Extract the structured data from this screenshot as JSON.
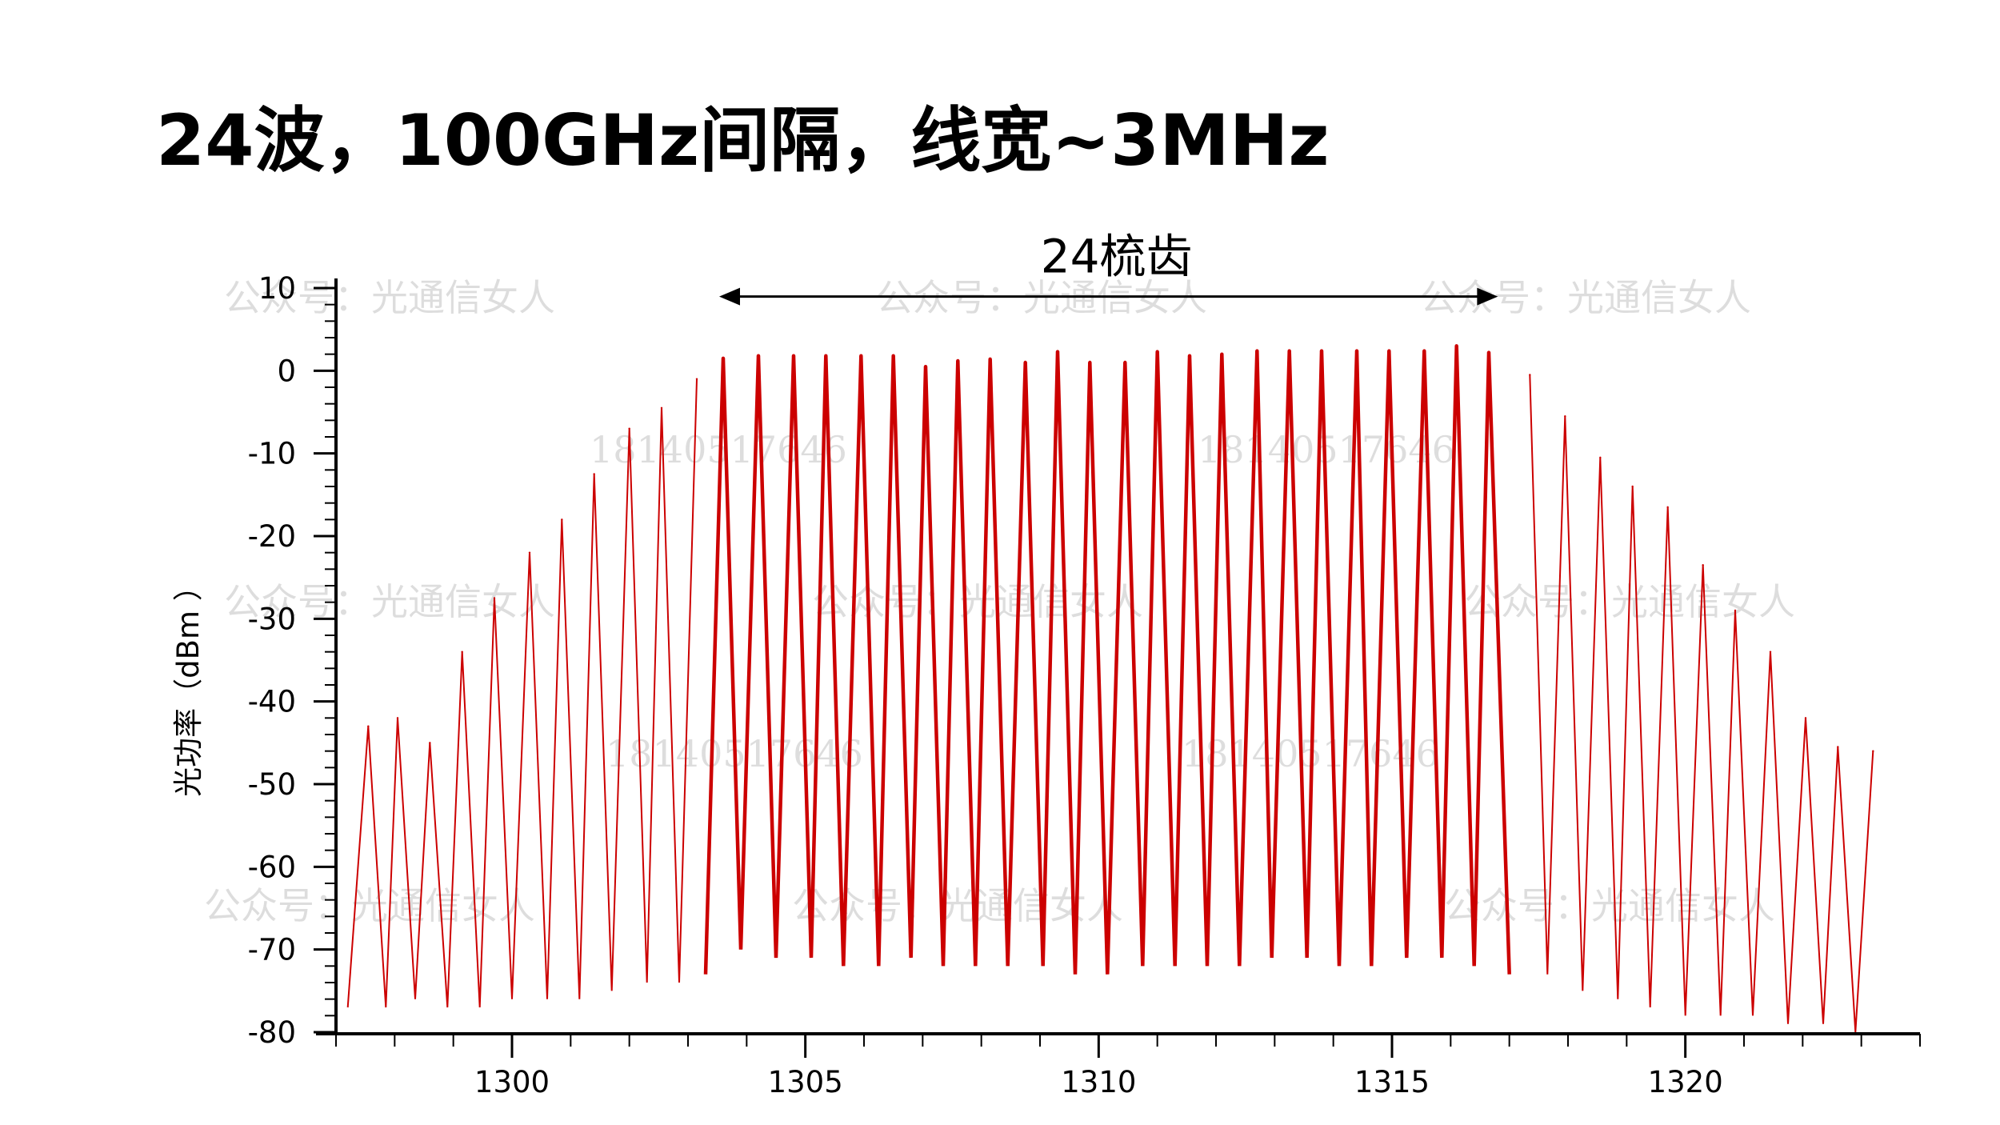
{
  "slide": {
    "title": "24波，100GHz间隔，线宽~3MHz"
  },
  "watermarks": {
    "account": "公众号：光通信女人",
    "phone": "18140517646"
  },
  "colors": {
    "spectrum": "#cc0000",
    "axis": "#000000"
  },
  "chart_data": {
    "type": "line",
    "title": "",
    "xlabel": "",
    "ylabel": "光功率（dBm  ）",
    "xlim": [
      1297,
      1324
    ],
    "ylim": [
      -80,
      10
    ],
    "x_ticks": [
      1300,
      1305,
      1310,
      1315,
      1320
    ],
    "y_ticks": [
      10,
      0,
      -10,
      -20,
      -30,
      -40,
      -50,
      -60,
      -70,
      -80
    ],
    "annotation": {
      "label": "24梳齿",
      "x_start": 1303.6,
      "x_end": 1316.6,
      "y": 8
    },
    "series": [
      {
        "kind": "outer",
        "peaks": [
          {
            "x": 1297.55,
            "y": -43
          },
          {
            "x": 1298.05,
            "y": -42
          },
          {
            "x": 1298.6,
            "y": -45
          },
          {
            "x": 1299.15,
            "y": -34
          },
          {
            "x": 1299.7,
            "y": -27.5
          },
          {
            "x": 1300.3,
            "y": -22
          },
          {
            "x": 1300.85,
            "y": -18
          },
          {
            "x": 1301.4,
            "y": -12.5
          },
          {
            "x": 1302.0,
            "y": -7
          },
          {
            "x": 1302.55,
            "y": -4.5
          },
          {
            "x": 1303.15,
            "y": -1
          },
          {
            "x": 1317.35,
            "y": -0.5
          },
          {
            "x": 1317.95,
            "y": -5.5
          },
          {
            "x": 1318.55,
            "y": -10.5
          },
          {
            "x": 1319.1,
            "y": -14
          },
          {
            "x": 1319.7,
            "y": -16.5
          },
          {
            "x": 1320.3,
            "y": -23.5
          },
          {
            "x": 1320.85,
            "y": -29
          },
          {
            "x": 1321.45,
            "y": -34
          },
          {
            "x": 1322.05,
            "y": -42
          },
          {
            "x": 1322.6,
            "y": -45.5
          },
          {
            "x": 1323.2,
            "y": -46
          }
        ],
        "valleys": [
          {
            "x": 1297.2,
            "y": -77
          },
          {
            "x": 1297.85,
            "y": -77
          },
          {
            "x": 1298.35,
            "y": -76
          },
          {
            "x": 1298.9,
            "y": -77
          },
          {
            "x": 1299.45,
            "y": -77
          },
          {
            "x": 1300.0,
            "y": -76
          },
          {
            "x": 1300.6,
            "y": -76
          },
          {
            "x": 1301.15,
            "y": -76
          },
          {
            "x": 1301.7,
            "y": -75
          },
          {
            "x": 1302.3,
            "y": -74
          },
          {
            "x": 1302.85,
            "y": -74
          },
          {
            "x": 1317.65,
            "y": -73
          },
          {
            "x": 1318.25,
            "y": -75
          },
          {
            "x": 1318.85,
            "y": -76
          },
          {
            "x": 1319.4,
            "y": -77
          },
          {
            "x": 1320.0,
            "y": -78
          },
          {
            "x": 1320.6,
            "y": -78
          },
          {
            "x": 1321.15,
            "y": -78
          },
          {
            "x": 1321.75,
            "y": -79
          },
          {
            "x": 1322.35,
            "y": -79
          },
          {
            "x": 1322.9,
            "y": -80
          }
        ]
      },
      {
        "kind": "comb",
        "peaks": [
          {
            "x": 1303.6,
            "y": 1.5
          },
          {
            "x": 1304.2,
            "y": 1.8
          },
          {
            "x": 1304.8,
            "y": 1.8
          },
          {
            "x": 1305.35,
            "y": 1.8
          },
          {
            "x": 1305.95,
            "y": 1.8
          },
          {
            "x": 1306.5,
            "y": 1.8
          },
          {
            "x": 1307.05,
            "y": 0.5
          },
          {
            "x": 1307.6,
            "y": 1.2
          },
          {
            "x": 1308.15,
            "y": 1.4
          },
          {
            "x": 1308.75,
            "y": 1.0
          },
          {
            "x": 1309.3,
            "y": 2.3
          },
          {
            "x": 1309.85,
            "y": 1.0
          },
          {
            "x": 1310.45,
            "y": 1.0
          },
          {
            "x": 1311.0,
            "y": 2.3
          },
          {
            "x": 1311.55,
            "y": 1.8
          },
          {
            "x": 1312.1,
            "y": 2.0
          },
          {
            "x": 1312.7,
            "y": 2.4
          },
          {
            "x": 1313.25,
            "y": 2.4
          },
          {
            "x": 1313.8,
            "y": 2.4
          },
          {
            "x": 1314.4,
            "y": 2.4
          },
          {
            "x": 1314.95,
            "y": 2.4
          },
          {
            "x": 1315.55,
            "y": 2.4
          },
          {
            "x": 1316.1,
            "y": 3.0
          },
          {
            "x": 1316.65,
            "y": 2.2
          }
        ],
        "valleys": [
          {
            "x": 1303.3,
            "y": -73
          },
          {
            "x": 1303.9,
            "y": -70
          },
          {
            "x": 1304.5,
            "y": -71
          },
          {
            "x": 1305.1,
            "y": -71
          },
          {
            "x": 1305.65,
            "y": -72
          },
          {
            "x": 1306.25,
            "y": -72
          },
          {
            "x": 1306.8,
            "y": -71
          },
          {
            "x": 1307.35,
            "y": -72
          },
          {
            "x": 1307.9,
            "y": -72
          },
          {
            "x": 1308.45,
            "y": -72
          },
          {
            "x": 1309.05,
            "y": -72
          },
          {
            "x": 1309.6,
            "y": -73
          },
          {
            "x": 1310.15,
            "y": -73
          },
          {
            "x": 1310.75,
            "y": -72
          },
          {
            "x": 1311.3,
            "y": -72
          },
          {
            "x": 1311.85,
            "y": -72
          },
          {
            "x": 1312.4,
            "y": -72
          },
          {
            "x": 1312.95,
            "y": -71
          },
          {
            "x": 1313.55,
            "y": -71
          },
          {
            "x": 1314.1,
            "y": -72
          },
          {
            "x": 1314.65,
            "y": -72
          },
          {
            "x": 1315.25,
            "y": -71
          },
          {
            "x": 1315.85,
            "y": -71
          },
          {
            "x": 1316.4,
            "y": -72
          },
          {
            "x": 1317.0,
            "y": -73
          }
        ]
      }
    ]
  }
}
